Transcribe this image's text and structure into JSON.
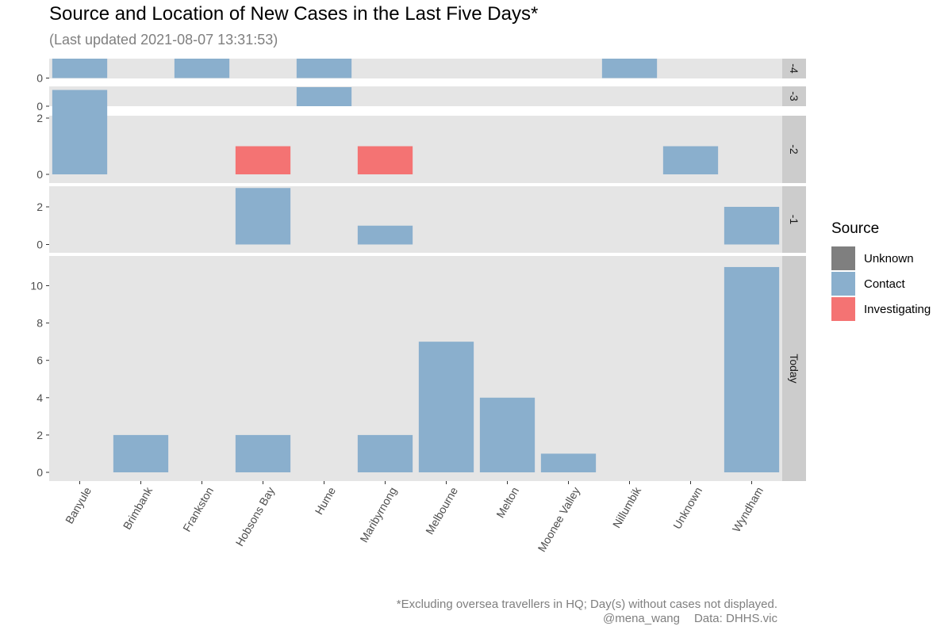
{
  "header": {
    "title": "Source and Location of New Cases in the Last Five Days*",
    "subtitle": "(Last updated 2021-08-07 13:31:53)"
  },
  "legend": {
    "title": "Source",
    "items": [
      {
        "label": "Unknown",
        "color": "#7f7f7f"
      },
      {
        "label": "Contact",
        "color": "#8aafcd"
      },
      {
        "label": "Investigating",
        "color": "#f47373"
      }
    ]
  },
  "caption": {
    "line1": "*Excluding oversea travellers in HQ; Day(s) without cases not displayed.",
    "handle": "@mena_wang",
    "source": "Data: DHHS.vic"
  },
  "chart_data": {
    "type": "bar",
    "x_categories": [
      "Banyule",
      "Brimbank",
      "Frankston",
      "Hobsons Bay",
      "Hume",
      "Maribyrnong",
      "Melbourne",
      "Melton",
      "Moonee Valley",
      "Nillumbik",
      "Unknown",
      "Wyndham"
    ],
    "facets": [
      {
        "label": "-4",
        "yticks": [
          0
        ],
        "ylim": [
          0,
          1
        ],
        "bars": [
          {
            "x": "Banyule",
            "value": 1,
            "source": "Contact"
          },
          {
            "x": "Frankston",
            "value": 1,
            "source": "Contact"
          },
          {
            "x": "Hume",
            "value": 1,
            "source": "Contact"
          },
          {
            "x": "Nillumbik",
            "value": 1,
            "source": "Contact"
          }
        ]
      },
      {
        "label": "-3",
        "yticks": [
          0
        ],
        "ylim": [
          0,
          1
        ],
        "bars": [
          {
            "x": "Hume",
            "value": 1,
            "source": "Contact"
          }
        ]
      },
      {
        "label": "-2",
        "yticks": [
          0,
          2
        ],
        "ylim": [
          0,
          3
        ],
        "bars": [
          {
            "x": "Banyule",
            "value": 3,
            "source": "Contact"
          },
          {
            "x": "Hobsons Bay",
            "value": 1,
            "source": "Investigating"
          },
          {
            "x": "Maribyrnong",
            "value": 1,
            "source": "Investigating"
          },
          {
            "x": "Unknown",
            "value": 1,
            "source": "Contact"
          }
        ]
      },
      {
        "label": "-1",
        "yticks": [
          0,
          2
        ],
        "ylim": [
          0,
          3
        ],
        "bars": [
          {
            "x": "Hobsons Bay",
            "value": 3,
            "source": "Contact"
          },
          {
            "x": "Maribyrnong",
            "value": 1,
            "source": "Contact"
          },
          {
            "x": "Wyndham",
            "value": 2,
            "source": "Contact"
          }
        ]
      },
      {
        "label": "Today",
        "yticks": [
          0,
          2,
          4,
          6,
          8,
          10
        ],
        "ylim": [
          0,
          11
        ],
        "bars": [
          {
            "x": "Brimbank",
            "value": 2,
            "source": "Contact"
          },
          {
            "x": "Hobsons Bay",
            "value": 2,
            "source": "Contact"
          },
          {
            "x": "Maribyrnong",
            "value": 2,
            "source": "Contact"
          },
          {
            "x": "Melbourne",
            "value": 7,
            "source": "Contact"
          },
          {
            "x": "Melton",
            "value": 4,
            "source": "Contact"
          },
          {
            "x": "Moonee Valley",
            "value": 1,
            "source": "Contact"
          },
          {
            "x": "Wyndham",
            "value": 11,
            "source": "Contact"
          }
        ]
      }
    ],
    "grid": false
  }
}
